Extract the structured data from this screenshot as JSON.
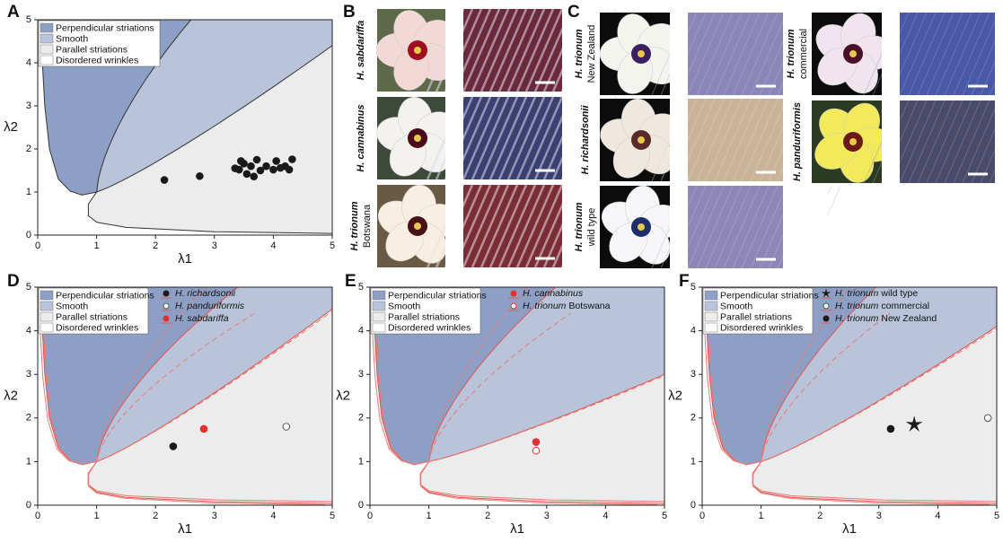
{
  "panel_labels": [
    "A",
    "B",
    "C",
    "D",
    "E",
    "F"
  ],
  "chart_data": [
    {
      "type": "scatter",
      "xlabel": "λ1",
      "ylabel": "λ2",
      "xlim": [
        0,
        5
      ],
      "ylim": [
        0,
        5
      ],
      "xticks": [
        0,
        1,
        2,
        3,
        4,
        5
      ],
      "yticks": [
        0,
        1,
        2,
        3,
        4,
        5
      ],
      "regions": [
        {
          "name": "Perpendicular striations",
          "color": "#8e9fc6"
        },
        {
          "name": "Smooth",
          "color": "#b9c3d9"
        },
        {
          "name": "Parallel striations",
          "color": "#ececec"
        },
        {
          "name": "Disordered wrinkles",
          "color": "#ffffff"
        }
      ],
      "series": [
        {
          "color": "#1a1a1a",
          "marker": "filled",
          "x": [
            2.15,
            2.75,
            3.35,
            3.42,
            3.5,
            3.55,
            3.62,
            3.67,
            3.72,
            3.78,
            3.88,
            4.0,
            4.05,
            4.12,
            4.2,
            4.27,
            4.32,
            3.45
          ],
          "y": [
            1.28,
            1.37,
            1.55,
            1.52,
            1.66,
            1.42,
            1.6,
            1.36,
            1.75,
            1.5,
            1.6,
            1.52,
            1.72,
            1.56,
            1.6,
            1.52,
            1.76,
            1.72
          ]
        }
      ]
    },
    {
      "type": "scatter",
      "xlabel": "λ1",
      "ylabel": "λ2",
      "xlim": [
        0,
        5
      ],
      "ylim": [
        0,
        5
      ],
      "xticks": [
        0,
        1,
        2,
        3,
        4,
        5
      ],
      "yticks": [
        0,
        1,
        2,
        3,
        4,
        5
      ],
      "regions": [
        {
          "name": "Perpendicular striations",
          "color": "#8e9fc6"
        },
        {
          "name": "Smooth",
          "color": "#b9c3d9"
        },
        {
          "name": "Parallel striations",
          "color": "#ececec"
        },
        {
          "name": "Disordered wrinkles",
          "color": "#ffffff"
        }
      ],
      "series": [
        {
          "name": "H. richardsonii",
          "color": "#1a1a1a",
          "marker": "filled",
          "x": [
            2.3
          ],
          "y": [
            1.35
          ]
        },
        {
          "name": "H. panduriformis",
          "color": "#555555",
          "marker": "open",
          "x": [
            4.22
          ],
          "y": [
            1.8
          ]
        },
        {
          "name": "H. sabdariffa",
          "color": "#e03030",
          "marker": "filled",
          "x": [
            2.82
          ],
          "y": [
            1.75
          ]
        }
      ]
    },
    {
      "type": "scatter",
      "xlabel": "λ1",
      "ylabel": "λ2",
      "xlim": [
        0,
        5
      ],
      "ylim": [
        0,
        5
      ],
      "xticks": [
        0,
        1,
        2,
        3,
        4,
        5
      ],
      "yticks": [
        0,
        1,
        2,
        3,
        4,
        5
      ],
      "regions": [
        {
          "name": "Perpendicular striations",
          "color": "#8e9fc6"
        },
        {
          "name": "Smooth",
          "color": "#b9c3d9"
        },
        {
          "name": "Parallel striations",
          "color": "#ececec"
        },
        {
          "name": "Disordered wrinkles",
          "color": "#ffffff"
        }
      ],
      "series": [
        {
          "name": "H. cannabinus",
          "color": "#e03030",
          "marker": "filled",
          "x": [
            2.82
          ],
          "y": [
            1.45
          ]
        },
        {
          "name": "H. trionum Botswana",
          "color": "#e03030",
          "marker": "open",
          "x": [
            2.82
          ],
          "y": [
            1.25
          ]
        }
      ]
    },
    {
      "type": "scatter",
      "xlabel": "λ1",
      "ylabel": "λ2",
      "xlim": [
        0,
        5
      ],
      "ylim": [
        0,
        5
      ],
      "xticks": [
        0,
        1,
        2,
        3,
        4,
        5
      ],
      "yticks": [
        0,
        1,
        2,
        3,
        4,
        5
      ],
      "regions": [
        {
          "name": "Perpendicular striations",
          "color": "#8e9fc6"
        },
        {
          "name": "Smooth",
          "color": "#b9c3d9"
        },
        {
          "name": "Parallel striations",
          "color": "#ececec"
        },
        {
          "name": "Disordered wrinkles",
          "color": "#ffffff"
        }
      ],
      "series": [
        {
          "name": "H. trionum wild type",
          "color": "#1a1a1a",
          "marker": "star",
          "x": [
            3.6
          ],
          "y": [
            1.85
          ]
        },
        {
          "name": "H. trionum commercial",
          "color": "#555555",
          "marker": "open",
          "x": [
            4.85
          ],
          "y": [
            2.0
          ]
        },
        {
          "name": "H. trionum New Zealand",
          "color": "#1a1a1a",
          "marker": "filled",
          "x": [
            3.2
          ],
          "y": [
            1.75
          ]
        }
      ]
    }
  ],
  "photos": {
    "B": [
      {
        "label": "H. sabdariffa"
      },
      {
        "label": "H. cannabinus"
      },
      {
        "label": "H. trionum",
        "sublabel": "Botswana"
      }
    ],
    "C": [
      {
        "label": "H. trionum",
        "sublabel": "New Zealand"
      },
      {
        "label": "H. richardsonii"
      },
      {
        "label": "H. trionum",
        "sublabel": "wild type"
      },
      {
        "label": "H. trionum",
        "sublabel": "commercial"
      },
      {
        "label": "H. panduriformis"
      }
    ]
  }
}
